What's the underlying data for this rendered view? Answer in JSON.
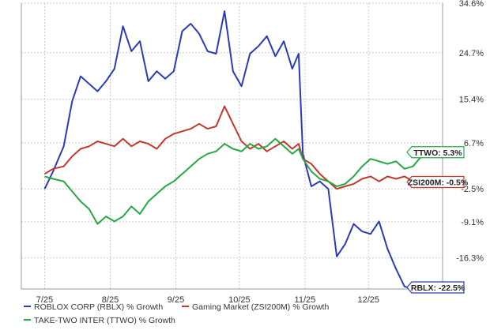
{
  "chart_data": {
    "type": "line",
    "title": "",
    "xlabel": "",
    "ylabel": "",
    "ylim": [
      -22.5,
      34.6
    ],
    "x_ticks": [
      "7/25",
      "8/25",
      "9/25",
      "10/25",
      "11/25",
      "12/25"
    ],
    "y_ticks": [
      "34.6%",
      "24.7%",
      "15.4%",
      "6.7%",
      "-2.5%",
      "-9.1%",
      "-16.3%"
    ],
    "y_tick_values": [
      34.6,
      24.7,
      15.4,
      6.7,
      -2.5,
      -9.1,
      -16.3
    ],
    "grid": true,
    "legend_position": "bottom",
    "series": [
      {
        "name": "ROBLOX CORP (RBLX) % Growth",
        "short_label": "RBLX",
        "end_label": "RBLX: -22.5%",
        "color": "#2a3cb3",
        "x": [
          "2025-07-01",
          "2025-07-05",
          "2025-07-10",
          "2025-07-14",
          "2025-07-18",
          "2025-07-22",
          "2025-07-26",
          "2025-07-30",
          "2025-08-03",
          "2025-08-07",
          "2025-08-11",
          "2025-08-15",
          "2025-08-19",
          "2025-08-23",
          "2025-08-27",
          "2025-08-31",
          "2025-09-04",
          "2025-09-08",
          "2025-09-12",
          "2025-09-16",
          "2025-09-20",
          "2025-09-24",
          "2025-09-28",
          "2025-10-02",
          "2025-10-06",
          "2025-10-10",
          "2025-10-14",
          "2025-10-18",
          "2025-10-22",
          "2025-10-26",
          "2025-10-29",
          "2025-10-31",
          "2025-11-04",
          "2025-11-08",
          "2025-11-12",
          "2025-11-16",
          "2025-11-20",
          "2025-11-24",
          "2025-11-28",
          "2025-12-02",
          "2025-12-06",
          "2025-12-10",
          "2025-12-14",
          "2025-12-18",
          "2025-12-22",
          "2025-12-26",
          "2025-12-30"
        ],
        "y": [
          -2.5,
          1.0,
          6.0,
          15.0,
          20.0,
          18.5,
          17.0,
          19.0,
          21.5,
          30.0,
          25.0,
          27.0,
          19.0,
          21.0,
          19.5,
          21.0,
          29.0,
          30.5,
          28.5,
          25.0,
          24.5,
          33.0,
          21.0,
          18.0,
          24.5,
          26.0,
          28.0,
          24.0,
          27.0,
          21.5,
          24.5,
          4.5,
          -2.0,
          -1.0,
          -2.5,
          -16.0,
          -13.5,
          -9.5,
          -11.0,
          -11.5,
          -9.0,
          -14.5,
          -18.5,
          -22.0,
          -22.5,
          -22.0,
          -22.5
        ]
      },
      {
        "name": "Gaming Market (ZSI200M) % Growth",
        "short_label": "ZSI200M",
        "end_label": "ZSI200M: -0.5%",
        "color": "#c0392b",
        "x": [
          "2025-07-01",
          "2025-07-05",
          "2025-07-10",
          "2025-07-14",
          "2025-07-18",
          "2025-07-22",
          "2025-07-26",
          "2025-07-30",
          "2025-08-03",
          "2025-08-07",
          "2025-08-11",
          "2025-08-15",
          "2025-08-19",
          "2025-08-23",
          "2025-08-27",
          "2025-08-31",
          "2025-09-04",
          "2025-09-08",
          "2025-09-12",
          "2025-09-16",
          "2025-09-20",
          "2025-09-24",
          "2025-09-28",
          "2025-10-02",
          "2025-10-06",
          "2025-10-10",
          "2025-10-14",
          "2025-10-18",
          "2025-10-22",
          "2025-10-26",
          "2025-10-29",
          "2025-10-31",
          "2025-11-04",
          "2025-11-08",
          "2025-11-12",
          "2025-11-16",
          "2025-11-20",
          "2025-11-24",
          "2025-11-28",
          "2025-12-02",
          "2025-12-06",
          "2025-12-10",
          "2025-12-14",
          "2025-12-18",
          "2025-12-22",
          "2025-12-26",
          "2025-12-30"
        ],
        "y": [
          0.5,
          1.5,
          2.0,
          4.0,
          5.5,
          6.0,
          7.0,
          6.5,
          6.0,
          7.5,
          6.0,
          7.0,
          6.5,
          5.5,
          7.5,
          8.5,
          9.0,
          9.5,
          10.5,
          9.5,
          10.0,
          14.0,
          10.5,
          7.0,
          5.5,
          6.5,
          5.0,
          6.0,
          7.0,
          5.5,
          6.5,
          3.5,
          2.5,
          0.5,
          -1.0,
          -2.5,
          -2.0,
          -1.5,
          -0.5,
          0.0,
          -1.0,
          0.0,
          -0.5,
          0.0,
          -1.0,
          -0.5,
          -0.5
        ]
      },
      {
        "name": "TAKE-TWO INTER (TTWO) % Growth",
        "short_label": "TTWO",
        "end_label": "TTWO: 5.3%",
        "color": "#27a844",
        "x": [
          "2025-07-01",
          "2025-07-05",
          "2025-07-10",
          "2025-07-14",
          "2025-07-18",
          "2025-07-22",
          "2025-07-26",
          "2025-07-30",
          "2025-08-03",
          "2025-08-07",
          "2025-08-11",
          "2025-08-15",
          "2025-08-19",
          "2025-08-23",
          "2025-08-27",
          "2025-08-31",
          "2025-09-04",
          "2025-09-08",
          "2025-09-12",
          "2025-09-16",
          "2025-09-20",
          "2025-09-24",
          "2025-09-28",
          "2025-10-02",
          "2025-10-06",
          "2025-10-10",
          "2025-10-14",
          "2025-10-18",
          "2025-10-22",
          "2025-10-26",
          "2025-10-29",
          "2025-10-31",
          "2025-11-04",
          "2025-11-08",
          "2025-11-12",
          "2025-11-16",
          "2025-11-20",
          "2025-11-24",
          "2025-11-28",
          "2025-12-02",
          "2025-12-06",
          "2025-12-10",
          "2025-12-14",
          "2025-12-18",
          "2025-12-22",
          "2025-12-26",
          "2025-12-30"
        ],
        "y": [
          0.0,
          -0.5,
          -1.0,
          -3.0,
          -5.0,
          -6.5,
          -9.5,
          -8.0,
          -9.0,
          -8.0,
          -6.0,
          -7.5,
          -5.0,
          -3.5,
          -2.0,
          -1.0,
          0.5,
          2.0,
          3.5,
          4.5,
          5.0,
          6.5,
          5.5,
          5.0,
          6.5,
          5.5,
          6.0,
          7.5,
          6.0,
          4.5,
          5.5,
          3.5,
          1.0,
          -0.5,
          -1.0,
          -2.0,
          -1.5,
          0.0,
          2.0,
          3.5,
          3.0,
          2.5,
          3.0,
          1.5,
          2.0,
          4.0,
          5.3
        ]
      }
    ]
  }
}
